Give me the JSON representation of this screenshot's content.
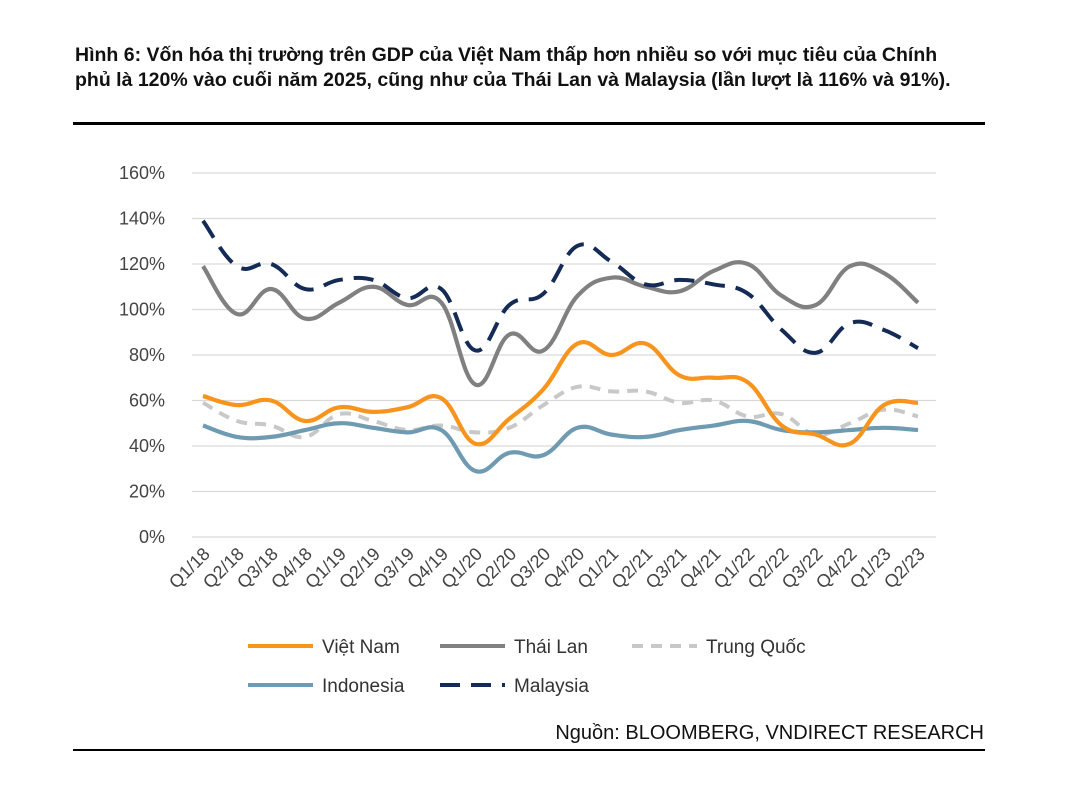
{
  "title": "Hình 6: Vốn hóa thị trường trên GDP của Việt Nam thấp hơn nhiều so với mục tiêu của Chính phủ là 120% vào cuối năm 2025, cũng như của Thái Lan và Malaysia (lần lượt là 116% và 91%).",
  "source": "Nguồn: BLOOMBERG, VNDIRECT RESEARCH",
  "chart_data": {
    "type": "line",
    "categories": [
      "Q1/18",
      "Q2/18",
      "Q3/18",
      "Q4/18",
      "Q1/19",
      "Q2/19",
      "Q3/19",
      "Q4/19",
      "Q1/20",
      "Q2/20",
      "Q3/20",
      "Q4/20",
      "Q1/21",
      "Q2/21",
      "Q3/21",
      "Q4/21",
      "Q1/22",
      "Q2/22",
      "Q3/22",
      "Q4/22",
      "Q1/23",
      "Q2/23"
    ],
    "y_ticks": [
      "0%",
      "20%",
      "40%",
      "60%",
      "80%",
      "100%",
      "120%",
      "140%",
      "160%"
    ],
    "ylim": [
      0,
      160
    ],
    "grid": true,
    "legend_position": "bottom",
    "series": [
      {
        "name": "Việt Nam",
        "color": "#F7941D",
        "dash": "solid",
        "values": [
          62,
          58,
          60,
          51,
          57,
          55,
          57,
          61,
          41,
          52,
          65,
          85,
          80,
          85,
          71,
          70,
          68,
          49,
          45,
          41,
          58,
          59
        ]
      },
      {
        "name": "Thái Lan",
        "color": "#808080",
        "dash": "solid",
        "values": [
          119,
          98,
          109,
          96,
          103,
          110,
          102,
          103,
          67,
          89,
          82,
          106,
          114,
          110,
          108,
          117,
          120,
          106,
          102,
          119,
          116,
          103
        ]
      },
      {
        "name": "Trung Quốc",
        "color": "#C8C8C8",
        "dash": "dashed",
        "values": [
          59,
          51,
          49,
          44,
          54,
          51,
          47,
          49,
          46,
          48,
          58,
          66,
          64,
          64,
          59,
          60,
          53,
          54,
          45,
          50,
          56,
          53
        ]
      },
      {
        "name": "Indonesia",
        "color": "#6F9BB2",
        "dash": "solid",
        "values": [
          49,
          44,
          44,
          47,
          50,
          48,
          46,
          47,
          29,
          37,
          36,
          48,
          45,
          44,
          47,
          49,
          51,
          47,
          46,
          47,
          48,
          47
        ]
      },
      {
        "name": "Malaysia",
        "color": "#142B55",
        "dash": "dashed",
        "values": [
          139,
          119,
          120,
          109,
          113,
          113,
          105,
          109,
          82,
          102,
          107,
          128,
          121,
          111,
          113,
          111,
          107,
          91,
          81,
          94,
          91,
          83
        ]
      }
    ]
  }
}
